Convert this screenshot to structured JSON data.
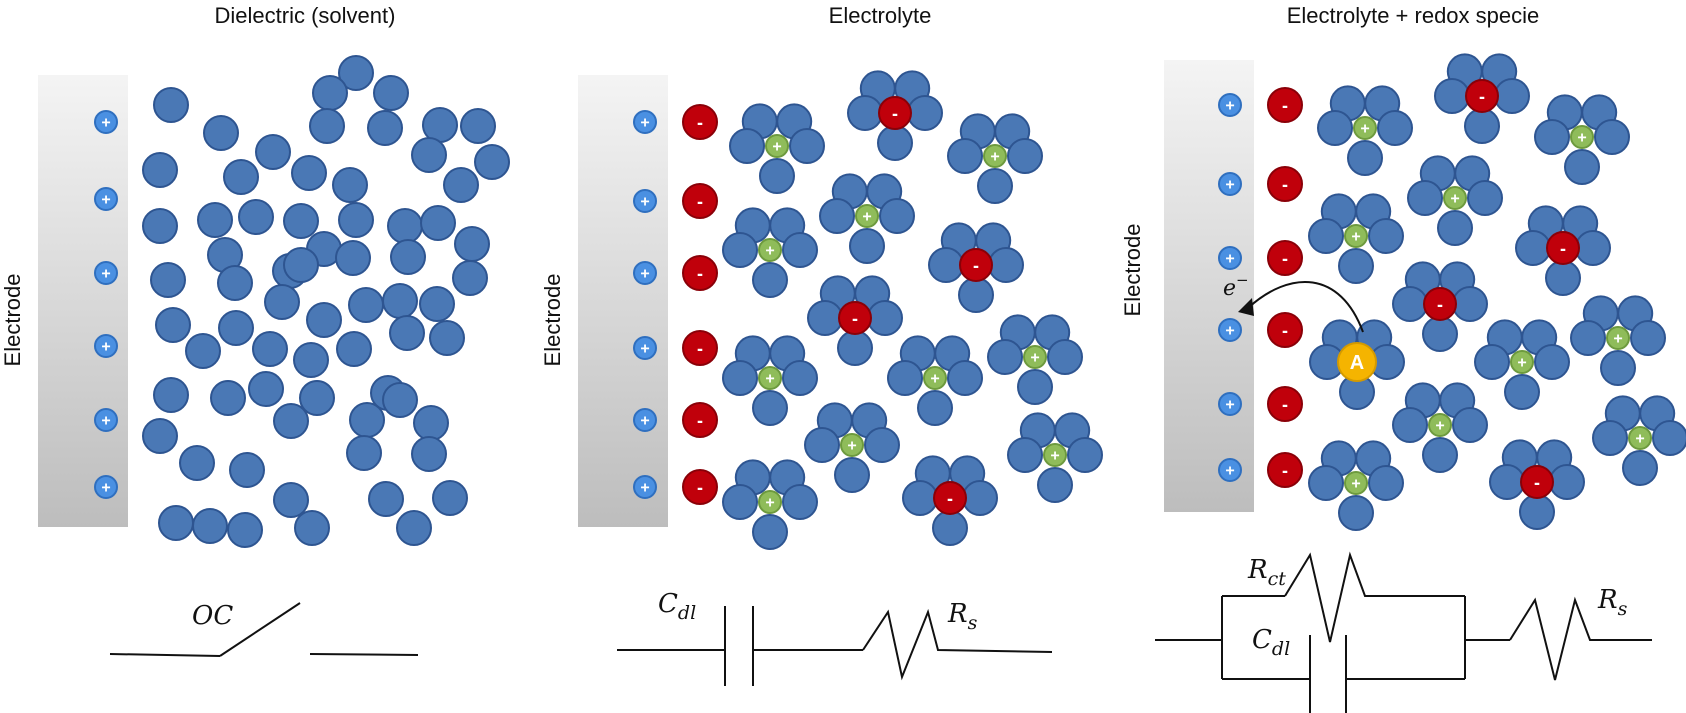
{
  "panels": [
    {
      "title": "Dielectric (solvent)",
      "electrode_label": "Electrode",
      "circuit": {
        "type": "open-switch",
        "labels": {
          "switch": "OC"
        }
      }
    },
    {
      "title": "Electrolyte",
      "electrode_label": "Electrode",
      "circuit": {
        "type": "series-rc",
        "labels": {
          "capacitor": "C",
          "capacitor_sub": "dl",
          "resistor": "R",
          "resistor_sub": "s"
        }
      }
    },
    {
      "title": "Electrolyte + redox specie",
      "electrode_label": "Electrode",
      "electron_label": "e",
      "electron_sup": "−",
      "redox_label": "A",
      "circuit": {
        "type": "randles",
        "labels": {
          "rct": "R",
          "rct_sub": "ct",
          "cdl": "C",
          "cdl_sub": "dl",
          "rs": "R",
          "rs_sub": "s"
        }
      }
    }
  ],
  "signs": {
    "plus": "+",
    "minus": "-"
  },
  "colors": {
    "solvent": "#4a78b5",
    "solvent_stroke": "#2e5591",
    "cation": "#8fbc5a",
    "anion": "#c0000b",
    "electrode_charge": "#4a90e2",
    "redox": "#f5b400",
    "electrode_top": "#f4f4f4",
    "electrode_bottom": "#bdbdbd"
  }
}
